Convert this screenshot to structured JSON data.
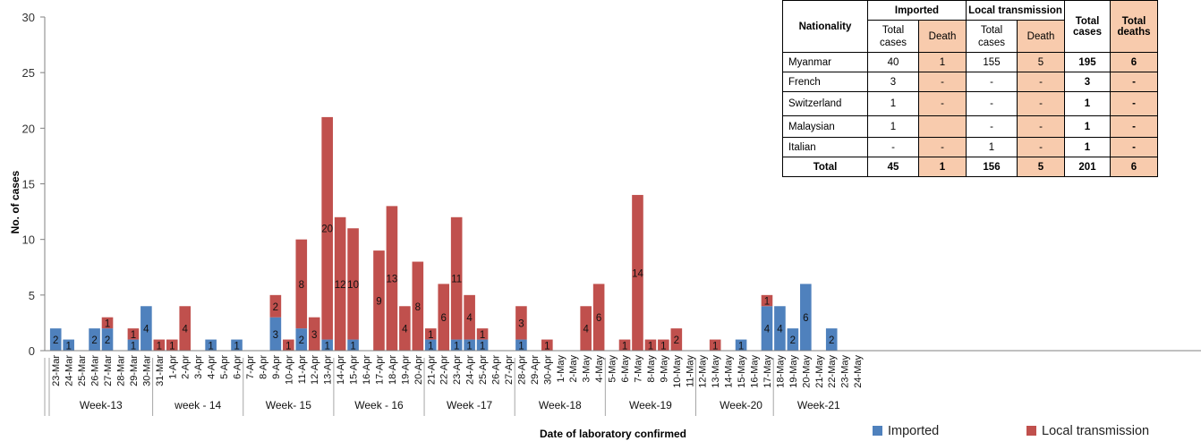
{
  "chart_data": {
    "type": "bar",
    "stacked": true,
    "xlabel": "Date of laboratory confirmed",
    "ylabel": "No. of cases",
    "ylim": [
      0,
      30
    ],
    "yticks": [
      0,
      5,
      10,
      15,
      20,
      25,
      30
    ],
    "grid": false,
    "legend_position": "bottom-right",
    "categories": [
      "23-Mar",
      "24-Mar",
      "25-Mar",
      "26-Mar",
      "27-Mar",
      "28-Mar",
      "29-Mar",
      "30-Mar",
      "31-Mar",
      "1-Apr",
      "2-Apr",
      "3-Apr",
      "4-Apr",
      "5-Apr",
      "6-Apr",
      "7-Apr",
      "8-Apr",
      "9-Apr",
      "10-Apr",
      "11-Apr",
      "12-Apr",
      "13-Apr",
      "14-Apr",
      "15-Apr",
      "16-Apr",
      "17-Apr",
      "18-Apr",
      "19-Apr",
      "20-Apr",
      "21-Apr",
      "22-Apr",
      "23-Apr",
      "24-Apr",
      "25-Apr",
      "26-Apr",
      "27-Apr",
      "28-Apr",
      "29-Apr",
      "30-Apr",
      "1-May",
      "2-May",
      "3-May",
      "4-May",
      "5-May",
      "6-May",
      "7-May",
      "8-May",
      "9-May",
      "10-May",
      "11-May",
      "12-May",
      "13-May",
      "14-May",
      "15-May",
      "16-May",
      "17-May",
      "18-May",
      "19-May",
      "20-May",
      "21-May",
      "22-May",
      "23-May",
      "24-May"
    ],
    "series": [
      {
        "name": "Imported",
        "color": "#4f81bd",
        "values": [
          2,
          1,
          0,
          2,
          2,
          0,
          1,
          4,
          0,
          0,
          0,
          0,
          1,
          0,
          1,
          0,
          0,
          3,
          0,
          2,
          0,
          1,
          0,
          1,
          0,
          0,
          0,
          0,
          0,
          1,
          0,
          1,
          1,
          1,
          0,
          0,
          1,
          0,
          0,
          0,
          0,
          0,
          0,
          0,
          0,
          0,
          0,
          0,
          0,
          0,
          0,
          0,
          0,
          1,
          0,
          4,
          4,
          2,
          6,
          0,
          2,
          0,
          0
        ]
      },
      {
        "name": "Local transmission",
        "color": "#c0504d",
        "values": [
          0,
          0,
          0,
          0,
          1,
          0,
          1,
          0,
          1,
          1,
          4,
          0,
          0,
          0,
          0,
          0,
          0,
          2,
          1,
          8,
          3,
          20,
          12,
          10,
          0,
          9,
          13,
          4,
          8,
          1,
          6,
          11,
          4,
          1,
          0,
          0,
          3,
          0,
          1,
          0,
          0,
          4,
          6,
          0,
          1,
          14,
          1,
          1,
          2,
          0,
          0,
          1,
          0,
          0,
          0,
          1,
          0,
          0,
          0,
          0,
          0,
          0,
          0
        ]
      }
    ],
    "weeks": [
      {
        "label": "Week-13",
        "start": 0,
        "end": 7
      },
      {
        "label": "week - 14",
        "start": 8,
        "end": 14
      },
      {
        "label": "Week- 15",
        "start": 15,
        "end": 21
      },
      {
        "label": "Week - 16",
        "start": 22,
        "end": 28
      },
      {
        "label": "Week -17",
        "start": 29,
        "end": 35
      },
      {
        "label": "Week-18",
        "start": 36,
        "end": 42
      },
      {
        "label": "Week-19",
        "start": 43,
        "end": 49
      },
      {
        "label": "Week-20",
        "start": 50,
        "end": 56
      },
      {
        "label": "Week-21",
        "start": 56,
        "end": 62
      }
    ]
  },
  "table": {
    "headers": {
      "nationality": "Nationality",
      "imported": "Imported",
      "local": "Local transmission",
      "total_cases": "Total cases",
      "total_deaths": "Total deaths",
      "sub_total_cases": "Total cases",
      "sub_death": "Death"
    },
    "rows": [
      {
        "nationality": "Myanmar",
        "imp_total": "40",
        "imp_death": "1",
        "loc_total": "155",
        "loc_death": "5",
        "total": "195",
        "deaths": "6"
      },
      {
        "nationality": "French",
        "imp_total": "3",
        "imp_death": "-",
        "loc_total": "-",
        "loc_death": "-",
        "total": "3",
        "deaths": "-"
      },
      {
        "nationality": "Switzerland",
        "imp_total": "1",
        "imp_death": "-",
        "loc_total": "-",
        "loc_death": "-",
        "total": "1",
        "deaths": "-"
      },
      {
        "nationality": "Malaysian",
        "imp_total": "1",
        "imp_death": "",
        "loc_total": "-",
        "loc_death": "-",
        "total": "1",
        "deaths": "-"
      },
      {
        "nationality": "Italian",
        "imp_total": "-",
        "imp_death": "-",
        "loc_total": "1",
        "loc_death": "-",
        "total": "1",
        "deaths": "-"
      }
    ],
    "total_row": {
      "nationality": "Total",
      "imp_total": "45",
      "imp_death": "1",
      "loc_total": "156",
      "loc_death": "5",
      "total": "201",
      "deaths": "6"
    }
  },
  "legend": {
    "imported": "Imported",
    "local": "Local transmission"
  }
}
